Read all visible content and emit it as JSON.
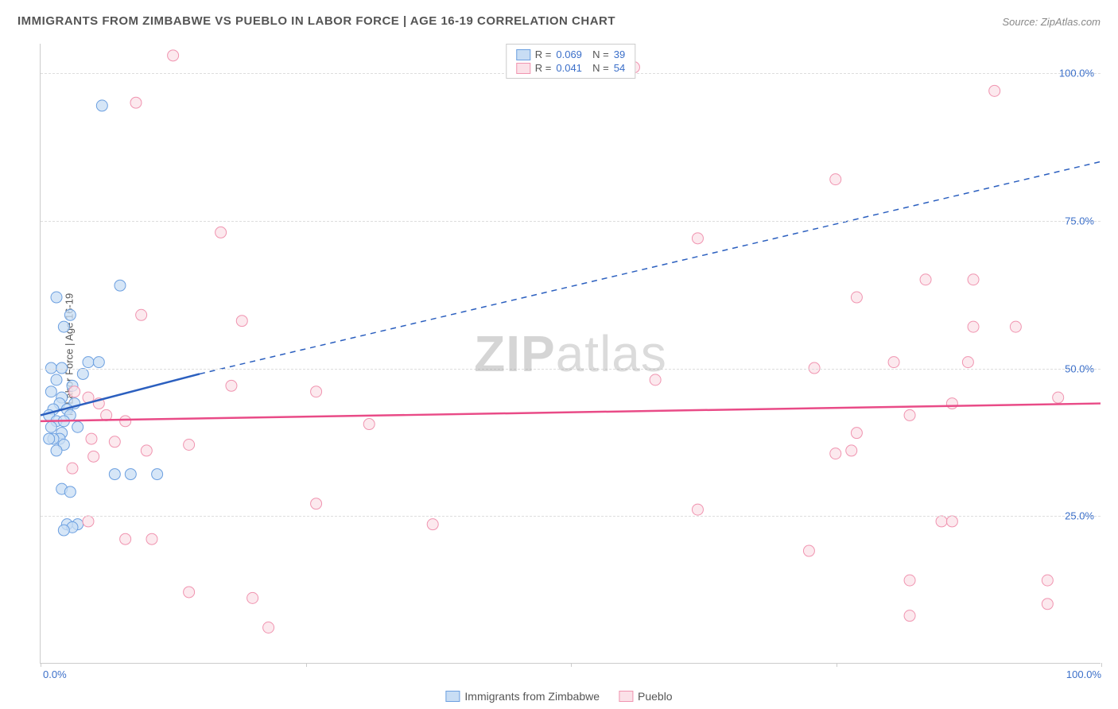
{
  "chart": {
    "type": "scatter",
    "title": "IMMIGRANTS FROM ZIMBABWE VS PUEBLO IN LABOR FORCE | AGE 16-19 CORRELATION CHART",
    "source": "Source: ZipAtlas.com",
    "yaxis_label": "In Labor Force | Age 16-19",
    "watermark_bold": "ZIP",
    "watermark_light": "atlas",
    "background_color": "#ffffff",
    "grid_color": "#dddddd",
    "axis_color": "#cccccc",
    "tick_color": "#3b6fc9",
    "label_fontsize": 13,
    "title_fontsize": 15,
    "xlim": [
      0,
      100
    ],
    "ylim": [
      0,
      105
    ],
    "yticks": [
      25,
      50,
      75,
      100
    ],
    "ytick_labels": [
      "25.0%",
      "50.0%",
      "75.0%",
      "100.0%"
    ],
    "xticks": [
      0,
      25,
      50,
      75,
      100
    ],
    "xtick_labels_shown": {
      "0": "0.0%",
      "100": "100.0%"
    },
    "series": [
      {
        "id": "zimbabwe",
        "name": "Immigrants from Zimbabwe",
        "color_fill": "#c8ddf4",
        "color_stroke": "#6b9fe0",
        "marker_radius": 7,
        "marker_opacity": 0.75,
        "R": "0.069",
        "N": "39",
        "trend_solid": {
          "x1": 0,
          "y1": 42,
          "x2": 15,
          "y2": 49
        },
        "trend_dashed": {
          "x1": 15,
          "y1": 49,
          "x2": 100,
          "y2": 85
        },
        "trend_color": "#2b5fbf",
        "trend_width": 2.5,
        "points": [
          [
            5.8,
            94.5
          ],
          [
            7.5,
            64
          ],
          [
            1.5,
            62
          ],
          [
            2.8,
            59
          ],
          [
            2.2,
            57
          ],
          [
            4.5,
            51
          ],
          [
            5.5,
            51
          ],
          [
            1,
            50
          ],
          [
            2,
            50
          ],
          [
            4,
            49
          ],
          [
            1.5,
            48
          ],
          [
            3,
            47
          ],
          [
            1,
            46
          ],
          [
            2,
            45
          ],
          [
            1.8,
            44
          ],
          [
            3.2,
            44
          ],
          [
            2.5,
            43
          ],
          [
            1.2,
            43
          ],
          [
            0.8,
            42
          ],
          [
            2.8,
            42
          ],
          [
            1.5,
            41
          ],
          [
            2.2,
            41
          ],
          [
            3.5,
            40
          ],
          [
            1,
            40
          ],
          [
            2,
            39
          ],
          [
            1.8,
            38
          ],
          [
            1.2,
            38
          ],
          [
            0.8,
            38
          ],
          [
            2.2,
            37
          ],
          [
            1.5,
            36
          ],
          [
            7,
            32
          ],
          [
            8.5,
            32
          ],
          [
            11,
            32
          ],
          [
            2,
            29.5
          ],
          [
            2.8,
            29
          ],
          [
            3.5,
            23.5
          ],
          [
            2.5,
            23.5
          ],
          [
            3,
            23
          ],
          [
            2.2,
            22.5
          ]
        ]
      },
      {
        "id": "pueblo",
        "name": "Pueblo",
        "color_fill": "#fbe1e8",
        "color_stroke": "#f094b0",
        "marker_radius": 7,
        "marker_opacity": 0.75,
        "R": "0.041",
        "N": "54",
        "trend_solid": {
          "x1": 0,
          "y1": 41,
          "x2": 100,
          "y2": 44
        },
        "trend_color": "#e94b87",
        "trend_width": 2.5,
        "points": [
          [
            12.5,
            103
          ],
          [
            56,
            101
          ],
          [
            9,
            95
          ],
          [
            90,
            97
          ],
          [
            83.5,
            65
          ],
          [
            17,
            73
          ],
          [
            75,
            82
          ],
          [
            62,
            72
          ],
          [
            77,
            62
          ],
          [
            88,
            65
          ],
          [
            9.5,
            59
          ],
          [
            19,
            58
          ],
          [
            4.5,
            45
          ],
          [
            8,
            41
          ],
          [
            5.5,
            44
          ],
          [
            18,
            47
          ],
          [
            26,
            46
          ],
          [
            14,
            37
          ],
          [
            31,
            40.5
          ],
          [
            58,
            48
          ],
          [
            82,
            42
          ],
          [
            86,
            44
          ],
          [
            87.5,
            51
          ],
          [
            80.5,
            51
          ],
          [
            73,
            50
          ],
          [
            77,
            39
          ],
          [
            75,
            35.5
          ],
          [
            76.5,
            36
          ],
          [
            92,
            57
          ],
          [
            96,
            45
          ],
          [
            62,
            26
          ],
          [
            72.5,
            19
          ],
          [
            82,
            14
          ],
          [
            82,
            8
          ],
          [
            95,
            14
          ],
          [
            95,
            10
          ],
          [
            85,
            24
          ],
          [
            86,
            24
          ],
          [
            3,
            33
          ],
          [
            5,
            35
          ],
          [
            7,
            37.5
          ],
          [
            10,
            36
          ],
          [
            4.5,
            24
          ],
          [
            10.5,
            21
          ],
          [
            8,
            21
          ],
          [
            14,
            12
          ],
          [
            20,
            11
          ],
          [
            26,
            27
          ],
          [
            37,
            23.5
          ],
          [
            21.5,
            6
          ],
          [
            3.2,
            46
          ],
          [
            4.8,
            38
          ],
          [
            6.2,
            42
          ],
          [
            88,
            57
          ]
        ]
      }
    ]
  }
}
